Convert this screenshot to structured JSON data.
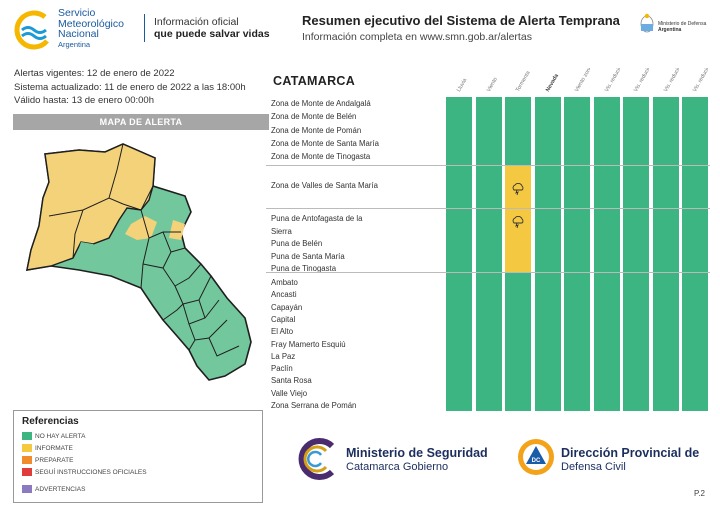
{
  "header": {
    "org_line1": "Servicio",
    "org_line2": "Meteorológico",
    "org_line3": "Nacional",
    "org_line4": "Argentina",
    "tagline1": "Información oficial",
    "tagline2": "que puede salvar vidas",
    "title": "Resumen ejecutivo del Sistema de Alerta Temprana",
    "subtitle": "Información completa en www.smn.gob.ar/alertas",
    "ministry_line1": "Ministerio de Defensa",
    "ministry_line2": "Argentina"
  },
  "info": {
    "vigentes": "Alertas vigentes: 12 de enero de 2022",
    "actualizado": "Sistema actualizado: 11 de enero de 2022 a las 18:00h",
    "valido": "Válido hasta: 13 de enero 00:00h"
  },
  "map": {
    "header": "MAPA DE ALERTA"
  },
  "references": {
    "title": "Referencias",
    "items": [
      {
        "label": "NO HAY ALERTA",
        "color": "#3db582"
      },
      {
        "label": "INFORMATE",
        "color": "#f5c842"
      },
      {
        "label": "PREPARATE",
        "color": "#f08c2e"
      },
      {
        "label": "SEGUÍ INSTRUCCIONES OFICIALES",
        "color": "#e03c3c"
      },
      {
        "label": "ADVERTENCIAS",
        "color": "#8c7ac0"
      }
    ]
  },
  "table": {
    "province": "CATAMARCA",
    "columns": [
      {
        "label": "Lluvia",
        "bold": false
      },
      {
        "label": "Viento",
        "bold": false
      },
      {
        "label": "Tormenta",
        "bold": false
      },
      {
        "label": "Nevada",
        "bold": true
      },
      {
        "label": "Viento zonda",
        "bold": false
      },
      {
        "label": "Vis. reducida por polvo en suspensión",
        "bold": false
      },
      {
        "label": "Vis. reducida por ceniza volcánica",
        "bold": false
      },
      {
        "label": "Vis. reducida por humo",
        "bold": false
      },
      {
        "label": "Vis. reducida por niebla",
        "bold": false
      }
    ],
    "groups": [
      {
        "zones": [
          "Zona de Monte de Andalgalá",
          "Zona de Monte de Belén",
          "Zona de Monte de Pomán",
          "Zona de Monte de Santa María",
          "Zona de Monte de Tinogasta"
        ],
        "storm_warning": false
      },
      {
        "zones": [
          "Zona de Valles de Santa María"
        ],
        "storm_warning": true
      },
      {
        "zones": [
          "Puna de Antofagasta de la",
          "Sierra",
          "Puna de Belén",
          "Puna de Santa María",
          "Puna de Tinogasta"
        ],
        "storm_warning": true
      },
      {
        "zones": [
          "Ambato",
          "Ancasti",
          "Capayán",
          "Capital",
          "El Alto",
          "Fray Mamerto Esquiú",
          "La Paz",
          "Paclín",
          "Santa Rosa",
          "Valle Viejo",
          "Zona Serrana de Pomán"
        ],
        "storm_warning": false
      }
    ]
  },
  "footer": {
    "ministry_title": "Ministerio de Seguridad",
    "ministry_sub": "Catamarca Gobierno",
    "dc_title": "Dirección Provincial de",
    "dc_sub": "Defensa Civil",
    "dc_badge": "DC",
    "page": "P.2"
  }
}
